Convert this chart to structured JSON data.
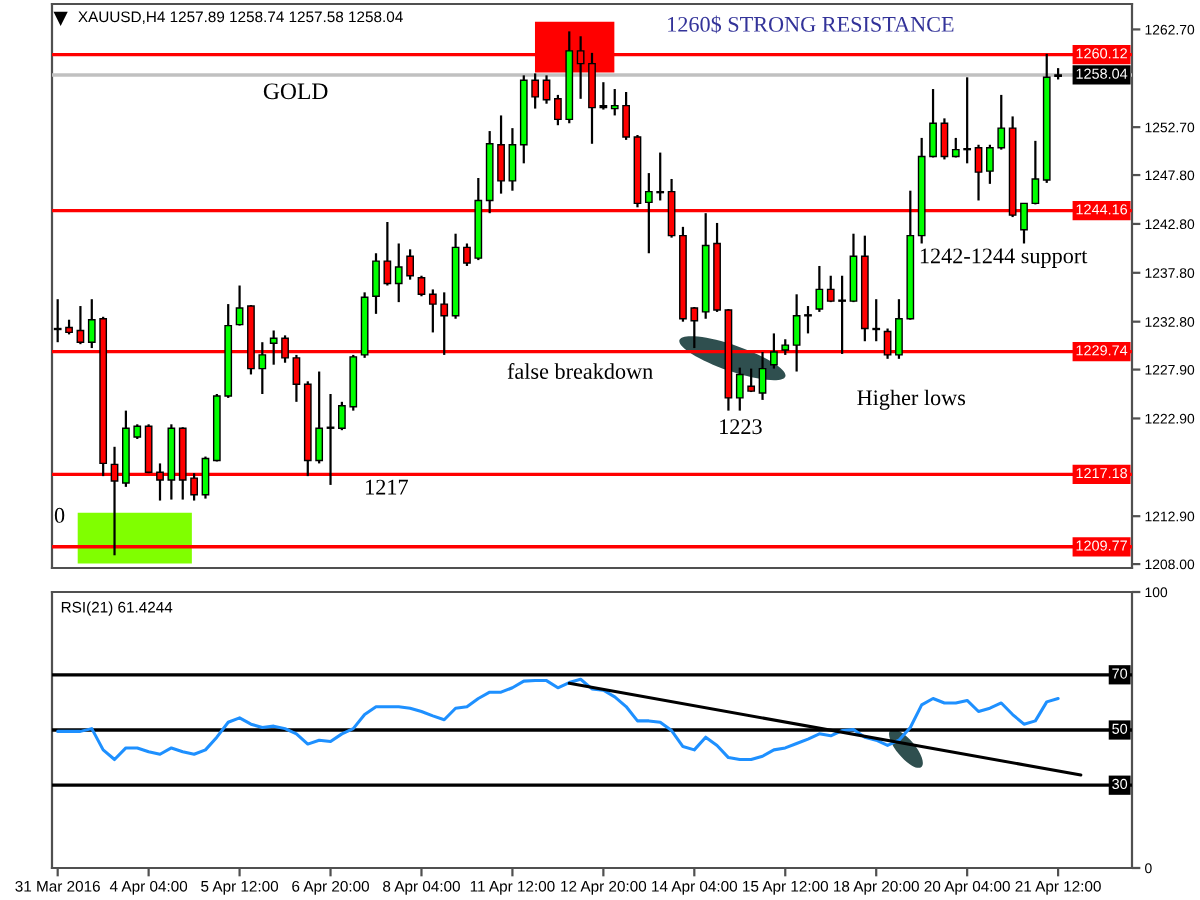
{
  "chart_data": [
    {
      "type": "candlestick",
      "title": "XAUUSD,H4 1257.89 1258.74 1257.58 1258.04",
      "categories": [
        null,
        null,
        null,
        null,
        null,
        null,
        null,
        null,
        null,
        null,
        null,
        null,
        null,
        null,
        null,
        null,
        null,
        null,
        null,
        null,
        null,
        null,
        null,
        null,
        null,
        null,
        null,
        null,
        null,
        null,
        null,
        null,
        null,
        null,
        null,
        null,
        null,
        null,
        null,
        null,
        null,
        null,
        null,
        null,
        null,
        null,
        null,
        null,
        null,
        null,
        null,
        null,
        null,
        null,
        null,
        null,
        null,
        null,
        null,
        null,
        null,
        null,
        null,
        null,
        null,
        null,
        null,
        null,
        null,
        null,
        null,
        null,
        null,
        null,
        null,
        null,
        null,
        null,
        null,
        null,
        null,
        null,
        null,
        null,
        null,
        null,
        null,
        null,
        null,
        null,
        null,
        null,
        null,
        null,
        null
      ],
      "ohlc": [
        [
          1232.1,
          1235.1,
          1230.7,
          1232.0
        ],
        [
          1232.2,
          1233.0,
          1231.5,
          1231.7
        ],
        [
          1231.9,
          1234.4,
          1230.5,
          1230.7
        ],
        [
          1230.7,
          1235.1,
          1230.1,
          1233.0
        ],
        [
          1233.1,
          1233.3,
          1217.0,
          1218.3
        ],
        [
          1218.2,
          1220.0,
          1208.9,
          1216.5
        ],
        [
          1216.3,
          1223.7,
          1215.9,
          1221.9
        ],
        [
          1221.0,
          1222.3,
          1220.8,
          1222.1
        ],
        [
          1222.1,
          1222.3,
          1217.3,
          1217.4
        ],
        [
          1217.4,
          1218.3,
          1214.5,
          1216.6
        ],
        [
          1216.6,
          1222.3,
          1214.6,
          1221.9
        ],
        [
          1221.9,
          1222.0,
          1214.6,
          1216.6
        ],
        [
          1216.8,
          1217.3,
          1214.5,
          1215.1
        ],
        [
          1215.1,
          1219.0,
          1214.7,
          1218.8
        ],
        [
          1218.6,
          1225.4,
          1218.5,
          1225.2
        ],
        [
          1225.2,
          1234.6,
          1225.0,
          1232.4
        ],
        [
          1232.5,
          1236.5,
          1232.4,
          1234.2
        ],
        [
          1234.4,
          1234.5,
          1227.4,
          1228.0
        ],
        [
          1228.0,
          1230.7,
          1225.4,
          1229.4
        ],
        [
          1230.6,
          1231.9,
          1228.4,
          1231.1
        ],
        [
          1231.1,
          1231.4,
          1228.6,
          1229.1
        ],
        [
          1229.1,
          1229.4,
          1224.6,
          1226.4
        ],
        [
          1226.4,
          1226.7,
          1217.0,
          1218.6
        ],
        [
          1218.6,
          1227.7,
          1218.3,
          1221.9
        ],
        [
          1221.9,
          1225.4,
          1216.1,
          1222.0
        ],
        [
          1221.9,
          1224.6,
          1221.7,
          1224.2
        ],
        [
          1224.1,
          1229.4,
          1223.7,
          1229.2
        ],
        [
          1229.4,
          1235.8,
          1229.1,
          1235.3
        ],
        [
          1235.4,
          1239.8,
          1233.6,
          1239.0
        ],
        [
          1239.0,
          1243.0,
          1236.5,
          1236.7
        ],
        [
          1236.7,
          1240.8,
          1234.8,
          1238.4
        ],
        [
          1239.5,
          1240.2,
          1237.1,
          1237.5
        ],
        [
          1237.3,
          1237.5,
          1235.4,
          1235.6
        ],
        [
          1235.6,
          1236.1,
          1231.7,
          1234.6
        ],
        [
          1234.6,
          1235.8,
          1229.4,
          1233.4
        ],
        [
          1233.4,
          1241.8,
          1233.1,
          1240.4
        ],
        [
          1240.4,
          1240.8,
          1238.5,
          1238.8
        ],
        [
          1239.3,
          1247.5,
          1239.1,
          1245.2
        ],
        [
          1245.2,
          1252.3,
          1243.9,
          1251.0
        ],
        [
          1250.9,
          1253.9,
          1245.9,
          1247.2
        ],
        [
          1247.2,
          1252.6,
          1246.2,
          1250.9
        ],
        [
          1250.9,
          1258.0,
          1249.0,
          1257.5
        ],
        [
          1257.5,
          1258.2,
          1254.6,
          1255.8
        ],
        [
          1257.5,
          1258.0,
          1255.1,
          1255.5
        ],
        [
          1255.6,
          1256.0,
          1252.9,
          1253.5
        ],
        [
          1253.5,
          1262.5,
          1253.1,
          1260.5
        ],
        [
          1260.5,
          1262.0,
          1255.6,
          1259.2
        ],
        [
          1259.2,
          1260.3,
          1251.0,
          1254.7
        ],
        [
          1254.9,
          1257.3,
          1254.5,
          1254.7
        ],
        [
          1254.6,
          1256.6,
          1253.9,
          1254.9
        ],
        [
          1254.9,
          1256.3,
          1251.4,
          1251.7
        ],
        [
          1251.7,
          1251.9,
          1244.5,
          1244.9
        ],
        [
          1245.0,
          1248.0,
          1239.8,
          1246.1
        ],
        [
          1246.1,
          1250.1,
          1245.2,
          1246.0
        ],
        [
          1246.1,
          1247.4,
          1241.4,
          1241.6
        ],
        [
          1241.6,
          1242.5,
          1232.8,
          1233.1
        ],
        [
          1234.2,
          1234.3,
          1230.1,
          1232.9
        ],
        [
          1233.8,
          1243.9,
          1233.1,
          1240.6
        ],
        [
          1240.8,
          1242.9,
          1233.8,
          1234.0
        ],
        [
          1234.0,
          1234.1,
          1223.7,
          1225.0
        ],
        [
          1225.0,
          1228.1,
          1223.7,
          1227.4
        ],
        [
          1226.2,
          1228.0,
          1225.6,
          1225.7
        ],
        [
          1225.5,
          1229.7,
          1224.8,
          1228.0
        ],
        [
          1228.4,
          1231.6,
          1228.0,
          1229.7
        ],
        [
          1229.9,
          1231.0,
          1229.4,
          1230.4
        ],
        [
          1230.4,
          1235.6,
          1227.7,
          1233.4
        ],
        [
          1233.5,
          1234.4,
          1231.6,
          1233.4
        ],
        [
          1234.1,
          1238.5,
          1233.8,
          1236.1
        ],
        [
          1236.1,
          1237.5,
          1234.8,
          1234.9
        ],
        [
          1235.0,
          1237.5,
          1229.5,
          1234.9
        ],
        [
          1234.9,
          1241.8,
          1234.8,
          1239.5
        ],
        [
          1239.5,
          1241.6,
          1230.8,
          1232.1
        ],
        [
          1232.1,
          1235.1,
          1230.8,
          1232.0
        ],
        [
          1231.8,
          1232.1,
          1229.0,
          1229.4
        ],
        [
          1229.4,
          1235.1,
          1229.0,
          1233.1
        ],
        [
          1233.1,
          1246.2,
          1233.0,
          1241.6
        ],
        [
          1241.6,
          1251.6,
          1240.8,
          1249.7
        ],
        [
          1249.7,
          1256.6,
          1249.6,
          1253.1
        ],
        [
          1253.1,
          1253.6,
          1249.4,
          1249.7
        ],
        [
          1249.7,
          1251.6,
          1249.6,
          1250.4
        ],
        [
          1250.5,
          1257.8,
          1249.0,
          1250.4
        ],
        [
          1250.6,
          1250.9,
          1245.2,
          1248.1
        ],
        [
          1248.2,
          1250.9,
          1246.9,
          1250.6
        ],
        [
          1250.6,
          1256.0,
          1250.4,
          1252.6
        ],
        [
          1252.6,
          1253.8,
          1243.5,
          1243.7
        ],
        [
          1242.2,
          1244.9,
          1240.8,
          1244.9
        ],
        [
          1244.9,
          1251.3,
          1244.8,
          1247.4
        ],
        [
          1247.3,
          1260.2,
          1247.0,
          1257.8
        ],
        [
          1257.89,
          1258.74,
          1257.58,
          1258.04
        ],
        null,
        null,
        null,
        null,
        null,
        null
      ],
      "colors": [
        "#000000",
        "#ff0000",
        "#ff0000",
        "#00ff00",
        "#ff0000",
        "#ff0000",
        "#00ff00",
        "#00ff00",
        "#ff0000",
        "#ff0000",
        "#00ff00",
        "#ff0000",
        "#ff0000",
        "#00ff00",
        "#00ff00",
        "#00ff00",
        "#00ff00",
        "#ff0000",
        "#00ff00",
        "#00ff00",
        "#ff0000",
        "#ff0000",
        "#ff0000",
        "#00ff00",
        "#000000",
        "#00ff00",
        "#00ff00",
        "#00ff00",
        "#00ff00",
        "#ff0000",
        "#00ff00",
        "#ff0000",
        "#ff0000",
        "#ff0000",
        "#ff0000",
        "#00ff00",
        "#ff0000",
        "#00ff00",
        "#00ff00",
        "#ff0000",
        "#00ff00",
        "#00ff00",
        "#ff0000",
        "#ff0000",
        "#ff0000",
        "#00ff00",
        "#ff0000",
        "#ff0000",
        "#000000",
        "#00ff00",
        "#ff0000",
        "#ff0000",
        "#00ff00",
        "#000000",
        "#ff0000",
        "#ff0000",
        "#ff0000",
        "#00ff00",
        "#ff0000",
        "#ff0000",
        "#00ff00",
        "#ff0000",
        "#00ff00",
        "#00ff00",
        "#00ff00",
        "#00ff00",
        "#000000",
        "#00ff00",
        "#ff0000",
        "#000000",
        "#00ff00",
        "#ff0000",
        "#000000",
        "#ff0000",
        "#00ff00",
        "#00ff00",
        "#00ff00",
        "#00ff00",
        "#ff0000",
        "#00ff00",
        "#000000",
        "#ff0000",
        "#00ff00",
        "#00ff00",
        "#ff0000",
        "#00ff00",
        "#00ff00",
        "#00ff00",
        "#000000",
        null,
        null,
        null,
        null,
        null,
        null
      ],
      "ylim": [
        1207.6,
        1265.3
      ],
      "yticks": [
        {
          "value": 1262.7,
          "label": "1262.70"
        },
        {
          "value": 1252.7,
          "label": "1252.70"
        },
        {
          "value": 1247.8,
          "label": "1247.80"
        },
        {
          "value": 1242.8,
          "label": "1242.80"
        },
        {
          "value": 1237.8,
          "label": "1237.80"
        },
        {
          "value": 1232.8,
          "label": "1232.80"
        },
        {
          "value": 1227.9,
          "label": "1227.90"
        },
        {
          "value": 1222.9,
          "label": "1222.90"
        },
        {
          "value": 1212.9,
          "label": "1212.90"
        },
        {
          "value": 1208.0,
          "label": "1208.00"
        }
      ],
      "ref_lines": [
        {
          "axis": "y",
          "value": 1260.12,
          "label": "1260.12",
          "color": "#ff0000"
        },
        {
          "axis": "y",
          "value": 1258.04,
          "label": "1258.04",
          "color": "#c0c0c0"
        },
        {
          "axis": "y",
          "value": 1244.16,
          "label": "1244.16",
          "color": "#ff0000"
        },
        {
          "axis": "y",
          "value": 1229.74,
          "label": "1229.74",
          "color": "#ff0000"
        },
        {
          "axis": "y",
          "value": 1217.18,
          "label": "1217.18",
          "color": "#ff0000"
        },
        {
          "axis": "y",
          "value": 1209.77,
          "label": "1209.77",
          "color": "#ff0000"
        }
      ],
      "annotations": [
        "1260$ STRONG RESISTANCE",
        "GOLD",
        "false breakdown",
        "1223",
        "Higher lows",
        "1242-1244 support",
        "1217",
        "0"
      ]
    },
    {
      "type": "line",
      "title": "RSI(21) 61.4244",
      "categories": [
        "31 Mar 2016",
        null,
        null,
        null,
        null,
        null,
        null,
        null,
        "4 Apr 04:00",
        null,
        null,
        null,
        null,
        null,
        null,
        null,
        "5 Apr 12:00",
        null,
        null,
        null,
        null,
        null,
        null,
        null,
        "6 Apr 20:00",
        null,
        null,
        null,
        null,
        null,
        null,
        null,
        "8 Apr 04:00",
        null,
        null,
        null,
        null,
        null,
        null,
        null,
        "11 Apr 12:00",
        null,
        null,
        null,
        null,
        null,
        null,
        null,
        "12 Apr 20:00",
        null,
        null,
        null,
        null,
        null,
        null,
        null,
        "14 Apr 04:00",
        null,
        null,
        null,
        null,
        null,
        null,
        null,
        "15 Apr 12:00",
        null,
        null,
        null,
        null,
        null,
        null,
        null,
        "18 Apr 20:00",
        null,
        null,
        null,
        null,
        null,
        null,
        null,
        "20 Apr 04:00",
        null,
        null,
        null,
        null,
        null,
        null,
        null,
        "21 Apr 12:00",
        null,
        null,
        null,
        null,
        null,
        null
      ],
      "series": [
        {
          "color": "#1e90ff",
          "values": [
            49.5,
            49.5,
            49.5,
            50.5,
            42.8,
            39.3,
            43.5,
            43.5,
            42.1,
            41.2,
            43.5,
            42.1,
            41.2,
            42.8,
            47.4,
            52.8,
            54.4,
            52.1,
            50.9,
            51.4,
            50.5,
            48.6,
            44.9,
            46.3,
            45.8,
            48.6,
            50.5,
            55.6,
            58.4,
            58.4,
            58.4,
            57.9,
            56.7,
            55.1,
            53.7,
            57.9,
            58.4,
            61.4,
            63.7,
            63.7,
            65.3,
            67.7,
            67.9,
            67.9,
            65.3,
            67.2,
            68.4,
            64.9,
            64.4,
            62.0,
            58.5,
            53.3,
            53.3,
            52.8,
            49.8,
            44.0,
            42.8,
            47.4,
            44.4,
            40.0,
            39.3,
            39.3,
            40.5,
            42.8,
            43.5,
            45.1,
            46.7,
            48.6,
            47.9,
            49.8,
            50.2,
            47.4,
            46.3,
            44.4,
            46.3,
            50.9,
            59.1,
            61.4,
            59.8,
            59.8,
            60.7,
            56.7,
            57.9,
            59.8,
            55.6,
            52.1,
            53.3,
            60.2,
            61.4,
            null,
            null,
            null,
            null,
            null,
            null
          ]
        },
        {
          "type": "line",
          "color": "#000000",
          "values": [
            null,
            null,
            null,
            null,
            null,
            null,
            null,
            null,
            null,
            null,
            null,
            null,
            null,
            null,
            null,
            null,
            null,
            null,
            null,
            null,
            null,
            null,
            null,
            null,
            null,
            null,
            null,
            null,
            null,
            null,
            null,
            null,
            null,
            null,
            null,
            null,
            null,
            null,
            null,
            null,
            null,
            null,
            null,
            null,
            null,
            66.9,
            null,
            null,
            null,
            null,
            null,
            null,
            null,
            null,
            null,
            null,
            null,
            null,
            null,
            null,
            null,
            null,
            null,
            null,
            null,
            null,
            null,
            null,
            null,
            null,
            null,
            null,
            null,
            null,
            null,
            null,
            null,
            null,
            null,
            null,
            null,
            null,
            null,
            null,
            null,
            null,
            null,
            null,
            null,
            null,
            33.7,
            null,
            null,
            null,
            null
          ]
        }
      ],
      "ylim": [
        0,
        100
      ],
      "yticks": [
        0,
        100
      ],
      "ref_lines": [
        {
          "axis": "y",
          "value": 70,
          "label": "70",
          "color": "#000000"
        },
        {
          "axis": "y",
          "value": 50,
          "label": "50",
          "color": "#000000"
        },
        {
          "axis": "y",
          "value": 30,
          "label": "30",
          "color": "#000000"
        }
      ]
    }
  ]
}
